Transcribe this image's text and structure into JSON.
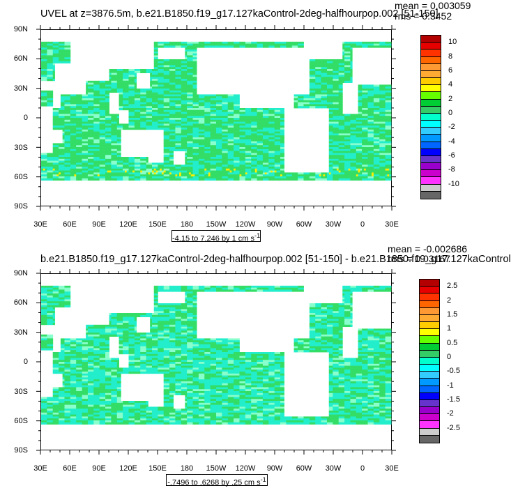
{
  "panels": [
    {
      "title": "UVEL at z=3876.5m, b.e21.B1850.f19_g17.127kaControl-2deg-halfhourpop.002 [51-150]",
      "mean_text": "mean = 0.003059",
      "rms_text": "rms = 0.3452",
      "contour_info_html": "-4.15 to 7.246 by 1 cm s<sup>-1</sup>",
      "colorbar_labels": [
        "10",
        "8",
        "6",
        "4",
        "2",
        "0",
        "-2",
        "-4",
        "-6",
        "-8",
        "-10"
      ]
    },
    {
      "title": "b.e21.B1850.f19_g17.127kaControl-2deg-halfhourpop.002 [51-150] - b.e21.B1850.f19_g17.127kaControl",
      "mean_text": "mean = -0.002686",
      "rms_text": "rms = 0.03167",
      "contour_info_html": "-.7496 to .6268 by .25 cm s<sup>-1</sup>",
      "colorbar_labels": [
        "2.5",
        "2",
        "1.5",
        "1",
        "0.5",
        "0",
        "-0.5",
        "-1",
        "-1.5",
        "-2",
        "-2.5"
      ]
    }
  ],
  "lat_labels": [
    "90N",
    "60N",
    "30N",
    "0",
    "30S",
    "60S",
    "90S"
  ],
  "lon_labels": [
    "30E",
    "60E",
    "90E",
    "120E",
    "150E",
    "180",
    "150W",
    "120W",
    "90W",
    "60W",
    "30W",
    "0",
    "30E"
  ],
  "colorbar_colors": [
    "#b30000",
    "#e60000",
    "#ff3300",
    "#ff6600",
    "#ff9933",
    "#ffaa33",
    "#ffcc00",
    "#ffff00",
    "#66ff00",
    "#00cc33",
    "#33cc66",
    "#00ffcc",
    "#00ffff",
    "#33ccff",
    "#0099ff",
    "#0066ff",
    "#0000ff",
    "#6633cc",
    "#9900cc",
    "#cc00cc",
    "#ff33ff",
    "#cccccc",
    "#666666"
  ],
  "field_colors": {
    "green": "#33dd66",
    "cyan": "#22eecc",
    "pale": "#88ffcc",
    "yellow": "#ffee00"
  }
}
